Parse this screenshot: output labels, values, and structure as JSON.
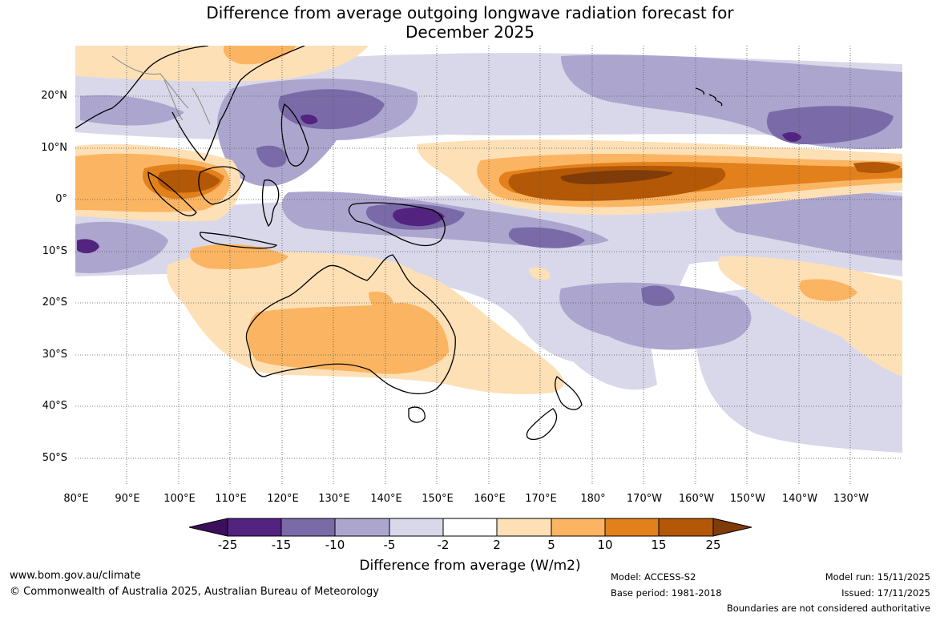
{
  "title": {
    "line1": "Difference from average outgoing longwave radiation forecast for",
    "line2": "December 2025"
  },
  "map": {
    "latitude_labels": [
      "20°N",
      "10°N",
      "0°",
      "10°S",
      "20°S",
      "30°S",
      "40°S",
      "50°S"
    ],
    "longitude_labels": [
      "80°E",
      "90°E",
      "100°E",
      "110°E",
      "120°E",
      "130°E",
      "140°E",
      "150°E",
      "160°E",
      "170°E",
      "180°",
      "170°W",
      "160°W",
      "150°W",
      "140°W",
      "130°W"
    ]
  },
  "colorbar": {
    "title": "Difference from average (W/m2)",
    "ticks": [
      "-25",
      "-15",
      "-10",
      "-5",
      "-2",
      "2",
      "5",
      "10",
      "15",
      "25"
    ],
    "colors": {
      "below_min": "#3b0f5c",
      "neg_25_15": "#52237f",
      "neg_15_10": "#7a6ba8",
      "neg_10_5": "#aca6cf",
      "neg_5_2": "#d9d8ea",
      "neutral": "#ffffff",
      "pos_2_5": "#fee0b6",
      "pos_5_10": "#fbb562",
      "pos_10_15": "#e2811c",
      "pos_15_25": "#b35806",
      "above_max": "#7f3b08"
    }
  },
  "footer": {
    "website": "www.bom.gov.au/climate",
    "copyright": "© Commonwealth of Australia 2025, Australian Bureau of Meteorology",
    "model": "Model: ACCESS-S2",
    "base_period": "Base period: 1981-2018",
    "model_run": "Model run: 15/11/2025",
    "issued": "Issued: 17/11/2025",
    "disclaimer": "Boundaries are not considered authoritative"
  }
}
